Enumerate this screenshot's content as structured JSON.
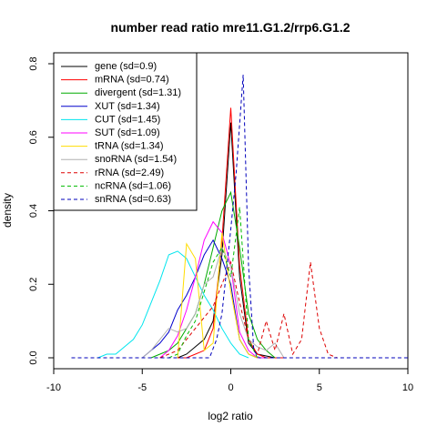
{
  "chart_data": {
    "type": "line",
    "title": "number read ratio mre11.G1.2/rrp6.G1.2",
    "xlabel": "log2 ratio",
    "ylabel": "density",
    "xlim": [
      -10,
      10
    ],
    "ylim": [
      0,
      0.8
    ],
    "xticks": [
      -10,
      -5,
      0,
      5,
      10
    ],
    "yticks": [
      0.0,
      0.2,
      0.4,
      0.6,
      0.8
    ],
    "legend_position": "top-left",
    "grid": false,
    "series": [
      {
        "name": "gene (sd=0.9)",
        "color": "#000000",
        "dash": "solid",
        "x": [
          -3,
          -2.5,
          -2,
          -1.5,
          -1,
          -0.5,
          0,
          0.5,
          1,
          1.5,
          2,
          2.5,
          3
        ],
        "y": [
          0,
          0.01,
          0.03,
          0.05,
          0.1,
          0.28,
          0.64,
          0.22,
          0.04,
          0.01,
          0.005,
          0,
          0
        ]
      },
      {
        "name": "mRNA (sd=0.74)",
        "color": "#ff0000",
        "dash": "solid",
        "x": [
          -3,
          -2.5,
          -2,
          -1.5,
          -1,
          -0.5,
          0,
          0.5,
          1,
          1.5,
          2,
          2.5,
          3
        ],
        "y": [
          0,
          0,
          0.01,
          0.02,
          0.08,
          0.32,
          0.68,
          0.25,
          0.05,
          0.01,
          0,
          0,
          0
        ]
      },
      {
        "name": "divergent (sd=1.31)",
        "color": "#00aa00",
        "dash": "solid",
        "x": [
          -4.5,
          -4,
          -3.5,
          -3,
          -2.5,
          -2,
          -1.5,
          -1,
          -0.5,
          0,
          0.5,
          1,
          1.5,
          2,
          2.5
        ],
        "y": [
          0,
          0.01,
          0.02,
          0.04,
          0.08,
          0.12,
          0.2,
          0.3,
          0.4,
          0.45,
          0.3,
          0.12,
          0.05,
          0.02,
          0
        ]
      },
      {
        "name": "XUT (sd=1.34)",
        "color": "#0000cc",
        "dash": "solid",
        "x": [
          -5,
          -4.5,
          -4,
          -3.5,
          -3,
          -2.5,
          -2,
          -1.5,
          -1,
          -0.5,
          0,
          0.5,
          1,
          1.5
        ],
        "y": [
          0,
          0.02,
          0.04,
          0.07,
          0.13,
          0.17,
          0.22,
          0.28,
          0.32,
          0.27,
          0.2,
          0.05,
          0.01,
          0
        ]
      },
      {
        "name": "CUT (sd=1.45)",
        "color": "#00e5ee",
        "dash": "solid",
        "x": [
          -7.5,
          -7,
          -6.5,
          -6,
          -5.5,
          -5,
          -4.5,
          -4,
          -3.5,
          -3,
          -2.5,
          -2,
          -1.5,
          -1,
          -0.5,
          0,
          0.5,
          1
        ],
        "y": [
          0,
          0.01,
          0.01,
          0.03,
          0.05,
          0.09,
          0.15,
          0.21,
          0.28,
          0.29,
          0.27,
          0.22,
          0.17,
          0.13,
          0.08,
          0.04,
          0.01,
          0
        ]
      },
      {
        "name": "SUT (sd=1.09)",
        "color": "#ff00ff",
        "dash": "solid",
        "x": [
          -4,
          -3.5,
          -3,
          -2.5,
          -2,
          -1.5,
          -1,
          -0.5,
          0,
          0.5,
          1,
          1.5,
          2
        ],
        "y": [
          0,
          0.02,
          0.06,
          0.13,
          0.22,
          0.32,
          0.37,
          0.34,
          0.25,
          0.07,
          0.02,
          0,
          0
        ]
      },
      {
        "name": "tRNA (sd=1.34)",
        "color": "#ffdd00",
        "dash": "solid",
        "x": [
          -3,
          -2.5,
          -2,
          -1.5,
          -1,
          -0.5,
          0,
          0.5,
          1,
          1.5
        ],
        "y": [
          0,
          0.31,
          0.27,
          0.02,
          0.04,
          0.34,
          0.18,
          0.05,
          0.01,
          0
        ]
      },
      {
        "name": "snoRNA (sd=1.54)",
        "color": "#b0b0b0",
        "dash": "solid",
        "x": [
          -5,
          -4.5,
          -4,
          -3.5,
          -3,
          -2.5,
          -2,
          -1.5,
          -1,
          -0.5,
          0,
          0.5,
          1,
          1.5,
          2,
          2.5,
          3
        ],
        "y": [
          0,
          0.02,
          0.05,
          0.08,
          0.07,
          0.08,
          0.12,
          0.2,
          0.22,
          0.3,
          0.25,
          0.12,
          0.05,
          0.03,
          0.02,
          0.04,
          0
        ]
      },
      {
        "name": "rRNA (sd=2.49)",
        "color": "#dd0000",
        "dash": "dashed",
        "x": [
          -4,
          -3.5,
          -3,
          -2.5,
          -2,
          -1.5,
          -1,
          -0.5,
          0,
          0.5,
          1,
          1.5,
          2,
          2.5,
          3,
          3.5,
          4,
          4.5,
          5,
          5.5,
          6
        ],
        "y": [
          0,
          0.01,
          0.02,
          0.05,
          0.08,
          0.11,
          0.14,
          0.2,
          0.26,
          0.15,
          0.05,
          0.01,
          0.1,
          0.02,
          0.12,
          0.01,
          0.05,
          0.26,
          0.08,
          0.01,
          0
        ]
      },
      {
        "name": "ncRNA (sd=1.06)",
        "color": "#00bb00",
        "dash": "dashed",
        "x": [
          -3.5,
          -3,
          -2.5,
          -2,
          -1.5,
          -1,
          -0.5,
          0,
          0.5,
          1,
          1.5
        ],
        "y": [
          0,
          0.01,
          0.06,
          0.1,
          0.18,
          0.26,
          0.3,
          0.22,
          0.41,
          0.05,
          0
        ]
      },
      {
        "name": "snRNA (sd=0.63)",
        "color": "#0000bb",
        "dash": "dashed",
        "x": [
          -9,
          -1.5,
          -1.2,
          -0.8,
          -0.5,
          0,
          0.3,
          0.7,
          1,
          1.3,
          1.6,
          10
        ],
        "y": [
          0,
          0,
          0,
          0.05,
          0.12,
          0.35,
          0.5,
          0.77,
          0.25,
          0.02,
          0,
          0
        ]
      }
    ]
  }
}
